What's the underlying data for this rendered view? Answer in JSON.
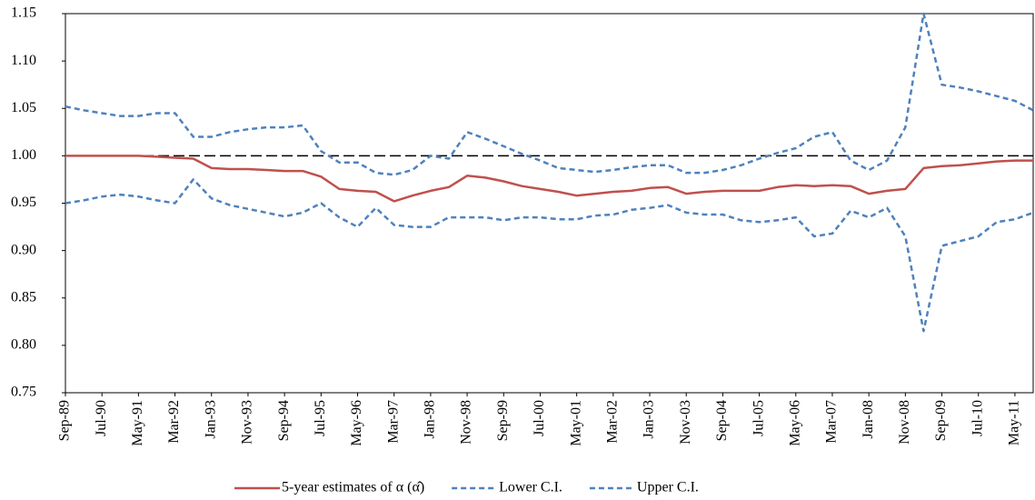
{
  "chart_data": {
    "type": "line",
    "categories": [
      "Sep-89",
      null,
      "Jul-90",
      null,
      "May-91",
      null,
      "Mar-92",
      null,
      "Jan-93",
      null,
      "Nov-93",
      null,
      "Sep-94",
      null,
      "Jul-95",
      null,
      "May-96",
      null,
      "Mar-97",
      null,
      "Jan-98",
      null,
      "Nov-98",
      null,
      "Sep-99",
      null,
      "Jul-00",
      null,
      "May-01",
      null,
      "Mar-02",
      null,
      "Jan-03",
      null,
      "Nov-03",
      null,
      "Sep-04",
      null,
      "Jul-05",
      null,
      "May-06",
      null,
      "Mar-07",
      null,
      "Jan-08",
      null,
      "Nov-08",
      null,
      "Sep-09",
      null,
      "Jul-10",
      null,
      "May-11",
      null
    ],
    "series": [
      {
        "name": "5-year estimates of α (α̂)",
        "color": "#c0504d",
        "dashed": false,
        "values": [
          1.0,
          1.0,
          1.0,
          1.0,
          1.0,
          0.999,
          0.998,
          0.997,
          0.987,
          0.986,
          0.986,
          0.985,
          0.984,
          0.984,
          0.978,
          0.965,
          0.963,
          0.962,
          0.952,
          0.958,
          0.963,
          0.967,
          0.979,
          0.977,
          0.973,
          0.968,
          0.965,
          0.962,
          0.958,
          0.96,
          0.962,
          0.963,
          0.966,
          0.967,
          0.96,
          0.962,
          0.963,
          0.963,
          0.963,
          0.967,
          0.969,
          0.968,
          0.969,
          0.968,
          0.96,
          0.963,
          0.965,
          0.987,
          0.989,
          0.99,
          0.992,
          0.994,
          0.995,
          0.995
        ]
      },
      {
        "name": "Lower C.I.",
        "color": "#4f81bd",
        "dashed": true,
        "values": [
          0.95,
          0.953,
          0.957,
          0.959,
          0.957,
          0.953,
          0.95,
          0.975,
          0.955,
          0.948,
          0.944,
          0.94,
          0.936,
          0.94,
          0.95,
          0.935,
          0.925,
          0.945,
          0.927,
          0.925,
          0.925,
          0.935,
          0.935,
          0.935,
          0.932,
          0.935,
          0.935,
          0.933,
          0.933,
          0.937,
          0.938,
          0.943,
          0.945,
          0.948,
          0.94,
          0.938,
          0.938,
          0.932,
          0.93,
          0.932,
          0.935,
          0.915,
          0.918,
          0.942,
          0.935,
          0.945,
          0.915,
          0.815,
          0.905,
          0.91,
          0.915,
          0.93,
          0.933,
          0.94
        ]
      },
      {
        "name": "Upper C.I.",
        "color": "#4f81bd",
        "dashed": true,
        "values": [
          1.052,
          1.048,
          1.045,
          1.042,
          1.042,
          1.045,
          1.045,
          1.02,
          1.02,
          1.025,
          1.028,
          1.03,
          1.03,
          1.032,
          1.005,
          0.993,
          0.993,
          0.982,
          0.98,
          0.985,
          1.0,
          0.997,
          1.025,
          1.018,
          1.01,
          1.002,
          0.995,
          0.987,
          0.985,
          0.983,
          0.985,
          0.988,
          0.99,
          0.99,
          0.982,
          0.982,
          0.985,
          0.99,
          0.997,
          1.003,
          1.008,
          1.02,
          1.025,
          0.995,
          0.985,
          0.995,
          1.03,
          1.15,
          1.075,
          1.072,
          1.068,
          1.063,
          1.058,
          1.048
        ]
      }
    ],
    "reference_line": 1,
    "ylim": [
      0.75,
      1.15
    ],
    "yticks": [
      {
        "value": 0.75,
        "label": "0.75"
      },
      {
        "value": 0.8,
        "label": "0.80"
      },
      {
        "value": 0.85,
        "label": "0.85"
      },
      {
        "value": 0.9,
        "label": "0.90"
      },
      {
        "value": 0.95,
        "label": "0.95"
      },
      {
        "value": 1.0,
        "label": "1.00"
      },
      {
        "value": 1.05,
        "label": "1.05"
      },
      {
        "value": 1.1,
        "label": "1.10"
      },
      {
        "value": 1.15,
        "label": "1.15"
      }
    ],
    "legend": "bottom"
  }
}
